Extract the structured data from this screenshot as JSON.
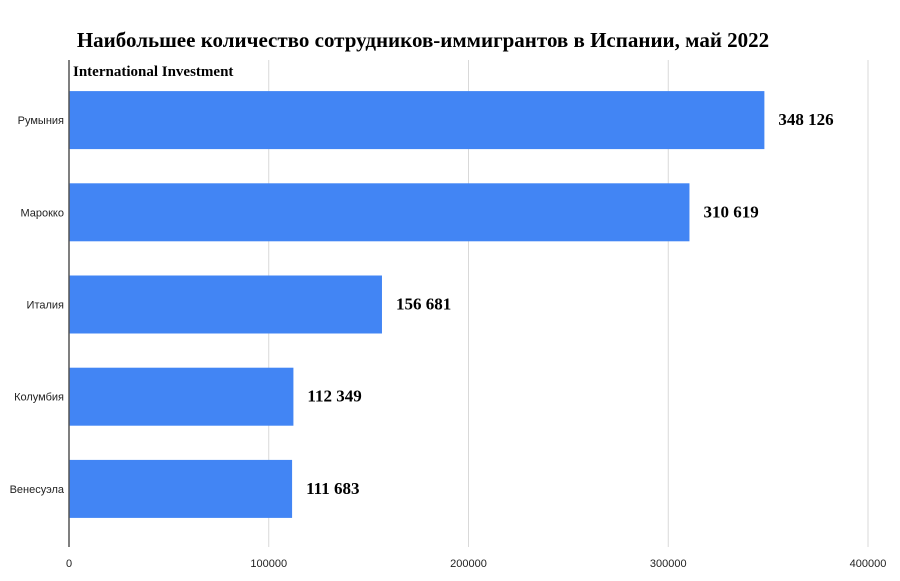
{
  "chart_data": {
    "type": "bar",
    "orientation": "horizontal",
    "title": "Наибольшее количество сотрудников-иммигрантов в Испании, май 2022",
    "subtitle": "International Investment",
    "categories": [
      "Румыния",
      "Марокко",
      "Италия",
      "Колумбия",
      "Венесуэла"
    ],
    "values": [
      348126,
      310619,
      156681,
      112349,
      111683
    ],
    "value_labels": [
      "348 126",
      "310 619",
      "156 681",
      "112 349",
      "111 683"
    ],
    "x_ticks": [
      0,
      100000,
      200000,
      300000,
      400000
    ],
    "x_tick_labels": [
      "0",
      "100000",
      "200000",
      "300000",
      "400000"
    ],
    "xlim": [
      0,
      400000
    ],
    "xlabel": "",
    "ylabel": "",
    "grid": true,
    "bar_color": "#4285f4",
    "legend": "none"
  }
}
